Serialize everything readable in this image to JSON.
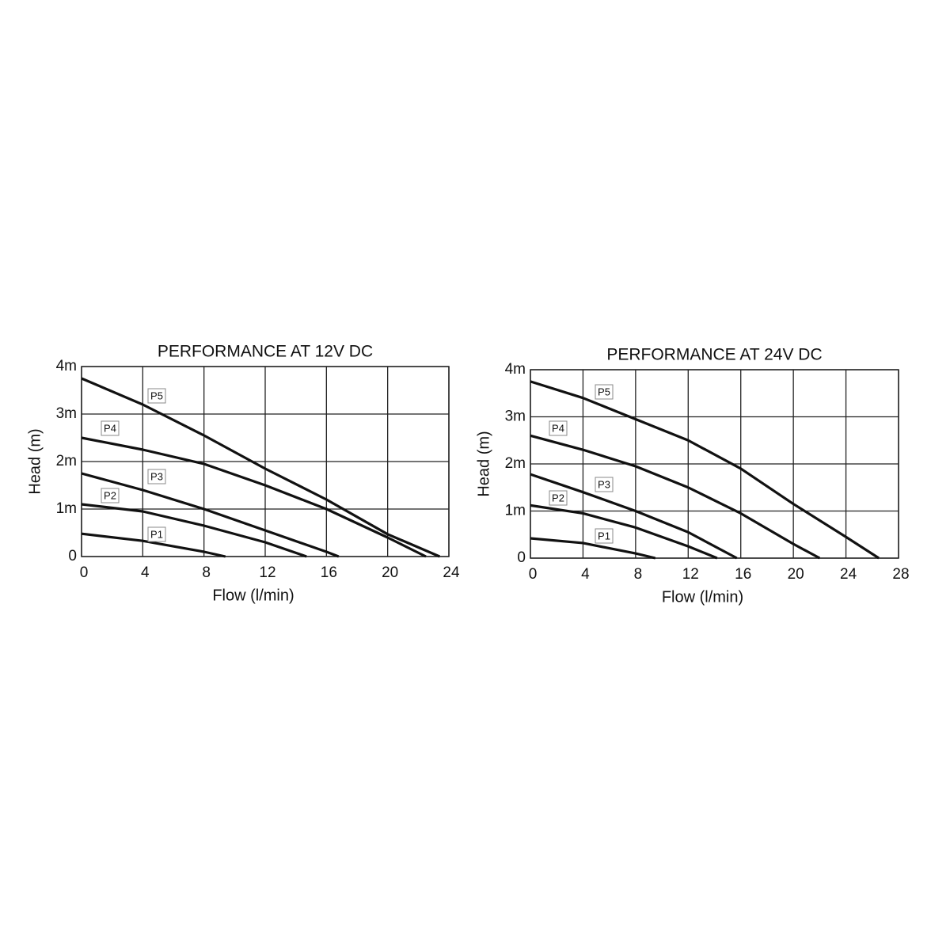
{
  "chart_data": [
    {
      "type": "line",
      "title": "PERFORMANCE AT 12V DC",
      "xlabel": "Flow (l/min)",
      "ylabel": "Head (m)",
      "xlim": [
        0,
        24
      ],
      "ylim": [
        0,
        4
      ],
      "xticks": [
        0,
        4,
        8,
        12,
        16,
        20,
        24
      ],
      "yticks": [
        0,
        {
          "value": 1,
          "label": "1m"
        },
        {
          "value": 2,
          "label": "2m"
        },
        {
          "value": 3,
          "label": "3m"
        },
        {
          "value": 4,
          "label": "4m"
        }
      ],
      "grid": true,
      "series": [
        {
          "name": "P1",
          "color": "#111111",
          "x": [
            0,
            4,
            8,
            9.4
          ],
          "values": [
            0.48,
            0.33,
            0.1,
            0
          ]
        },
        {
          "name": "P2",
          "color": "#111111",
          "x": [
            0,
            4,
            8,
            12,
            14.7
          ],
          "values": [
            1.1,
            0.95,
            0.65,
            0.3,
            0
          ]
        },
        {
          "name": "P3",
          "color": "#111111",
          "x": [
            0,
            4,
            8,
            12,
            16,
            16.8
          ],
          "values": [
            1.75,
            1.4,
            1.0,
            0.55,
            0.1,
            0
          ]
        },
        {
          "name": "P4",
          "color": "#111111",
          "x": [
            0,
            4,
            8,
            12,
            16,
            20,
            22.5
          ],
          "values": [
            2.5,
            2.25,
            1.95,
            1.5,
            1.0,
            0.4,
            0
          ]
        },
        {
          "name": "P5",
          "color": "#111111",
          "x": [
            0,
            4,
            8,
            12,
            16,
            20,
            23.4
          ],
          "values": [
            3.75,
            3.2,
            2.55,
            1.85,
            1.2,
            0.47,
            0
          ]
        }
      ]
    },
    {
      "type": "line",
      "title": "PERFORMANCE AT 24V DC",
      "xlabel": "Flow (l/min)",
      "ylabel": "Head (m)",
      "xlim": [
        0,
        28
      ],
      "ylim": [
        0,
        4
      ],
      "xticks": [
        0,
        4,
        8,
        12,
        16,
        20,
        24,
        28
      ],
      "yticks": [
        0,
        {
          "value": 1,
          "label": "1m"
        },
        {
          "value": 2,
          "label": "2m"
        },
        {
          "value": 3,
          "label": "3m"
        },
        {
          "value": 4,
          "label": "4m"
        }
      ],
      "grid": true,
      "series": [
        {
          "name": "P1",
          "color": "#111111",
          "x": [
            0,
            4,
            8,
            9.5
          ],
          "values": [
            0.42,
            0.32,
            0.1,
            0
          ]
        },
        {
          "name": "P2",
          "color": "#111111",
          "x": [
            0,
            4,
            8,
            12,
            14.2
          ],
          "values": [
            1.12,
            0.95,
            0.65,
            0.25,
            0
          ]
        },
        {
          "name": "P3",
          "color": "#111111",
          "x": [
            0,
            4,
            8,
            12,
            15.7
          ],
          "values": [
            1.78,
            1.4,
            1.0,
            0.55,
            0
          ]
        },
        {
          "name": "P4",
          "color": "#111111",
          "x": [
            0,
            4,
            8,
            12,
            16,
            20,
            22
          ],
          "values": [
            2.6,
            2.3,
            1.95,
            1.5,
            0.95,
            0.3,
            0
          ]
        },
        {
          "name": "P5",
          "color": "#111111",
          "x": [
            0,
            4,
            8,
            12,
            16,
            20,
            24,
            26.5
          ],
          "values": [
            3.75,
            3.4,
            2.95,
            2.5,
            1.9,
            1.15,
            0.45,
            0
          ]
        }
      ]
    }
  ]
}
